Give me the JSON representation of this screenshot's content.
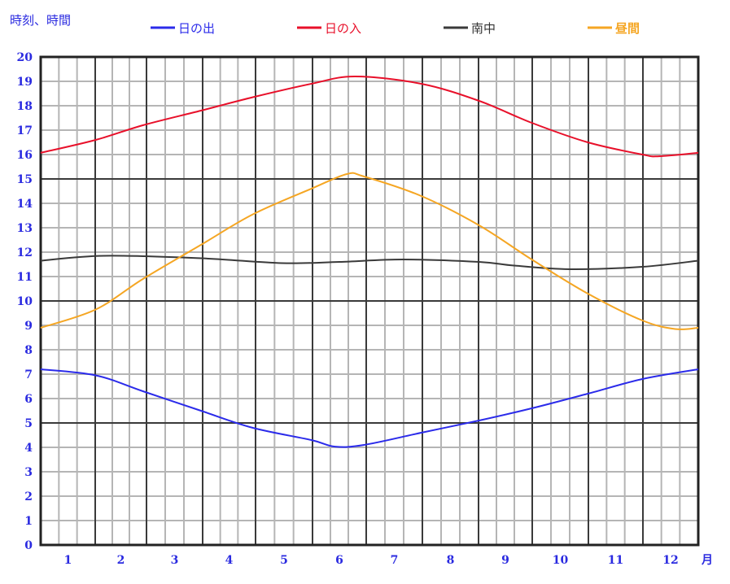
{
  "chart_data": {
    "type": "line",
    "ylabel": "時刻、時間",
    "xunit": "月",
    "ylim": [
      0,
      20
    ],
    "xlim": [
      0.5,
      12.5
    ],
    "yticks": [
      "0",
      "1",
      "2",
      "3",
      "4",
      "5",
      "6",
      "7",
      "8",
      "9",
      "10",
      "11",
      "12",
      "13",
      "14",
      "15",
      "16",
      "17",
      "18",
      "19",
      "20"
    ],
    "xticks": [
      "1",
      "2",
      "3",
      "4",
      "5",
      "6",
      "7",
      "8",
      "9",
      "10",
      "11",
      "12"
    ],
    "grid": true,
    "legend_position": "top",
    "series": [
      {
        "name": "日の出",
        "color": "#2b2bea",
        "x": [
          0.5,
          1.51,
          2.43,
          3.47,
          4.45,
          5.48,
          5.92,
          6.46,
          7.48,
          8.51,
          9.49,
          10.49,
          11.49,
          12.5
        ],
        "y": [
          7.2,
          6.95,
          6.3,
          5.5,
          4.8,
          4.3,
          4.03,
          4.1,
          4.6,
          5.1,
          5.6,
          6.2,
          6.8,
          7.2
        ]
      },
      {
        "name": "日の入",
        "color": "#e8102a",
        "x": [
          0.5,
          1.51,
          2.43,
          3.47,
          4.45,
          5.48,
          6.29,
          7.48,
          8.51,
          9.49,
          10.49,
          11.49,
          11.79,
          12.5
        ],
        "y": [
          16.07,
          16.6,
          17.2,
          17.8,
          18.35,
          18.9,
          19.2,
          18.9,
          18.2,
          17.3,
          16.5,
          16.0,
          15.93,
          16.07
        ]
      },
      {
        "name": "南中",
        "color": "#3a3a3a",
        "x": [
          0.5,
          1.67,
          3.47,
          4.96,
          6.0,
          7.15,
          8.51,
          9.16,
          10.16,
          11.49,
          12.5
        ],
        "y": [
          11.65,
          11.85,
          11.75,
          11.55,
          11.6,
          11.7,
          11.6,
          11.45,
          11.3,
          11.4,
          11.65
        ]
      },
      {
        "name": "昼間",
        "color": "#f5a623",
        "x": [
          0.5,
          1.51,
          2.43,
          3.47,
          4.45,
          5.48,
          6.14,
          6.46,
          7.48,
          8.51,
          9.49,
          10.49,
          11.49,
          12.08,
          12.5
        ],
        "y": [
          8.9,
          9.65,
          10.9,
          12.3,
          13.55,
          14.6,
          15.2,
          15.1,
          14.3,
          13.1,
          11.7,
          10.3,
          9.2,
          8.85,
          8.9
        ]
      }
    ]
  }
}
